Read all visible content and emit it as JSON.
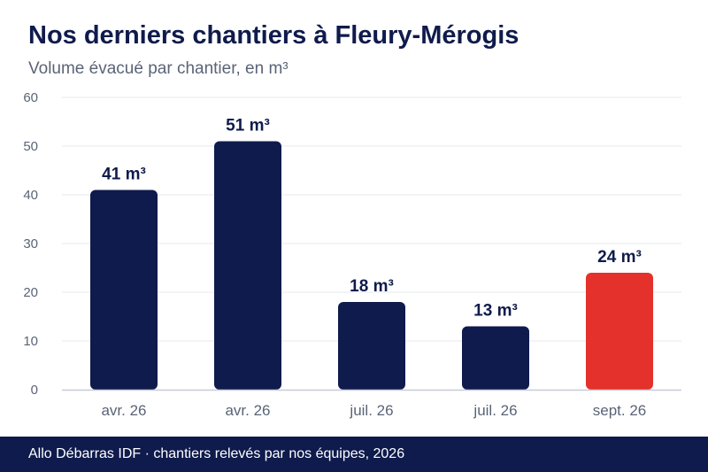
{
  "header": {
    "title": "Nos derniers chantiers à Fleury-Mérogis",
    "subtitle": "Volume évacué par chantier, en m³"
  },
  "footer": {
    "text": "Allo Débarras IDF · chantiers relevés par nos équipes, 2026"
  },
  "colors": {
    "bar": "#0f1b4c",
    "highlight_bar": "#e4312b",
    "grid": "#e6e8ee",
    "axis": "#c8ccd8",
    "tick_text": "#5a6477",
    "label_text": "#0f1b4c"
  },
  "chart_data": {
    "type": "bar",
    "categories": [
      "avr. 26",
      "avr. 26",
      "juil. 26",
      "juil. 26",
      "sept. 26"
    ],
    "values": [
      41,
      51,
      18,
      13,
      24
    ],
    "data_labels": [
      "41 m³",
      "51 m³",
      "18 m³",
      "13 m³",
      "24 m³"
    ],
    "highlight_index": 4,
    "ylim": [
      0,
      60
    ],
    "yticks": [
      0,
      10,
      20,
      30,
      40,
      50,
      60
    ],
    "grid": true,
    "legend": "none"
  }
}
